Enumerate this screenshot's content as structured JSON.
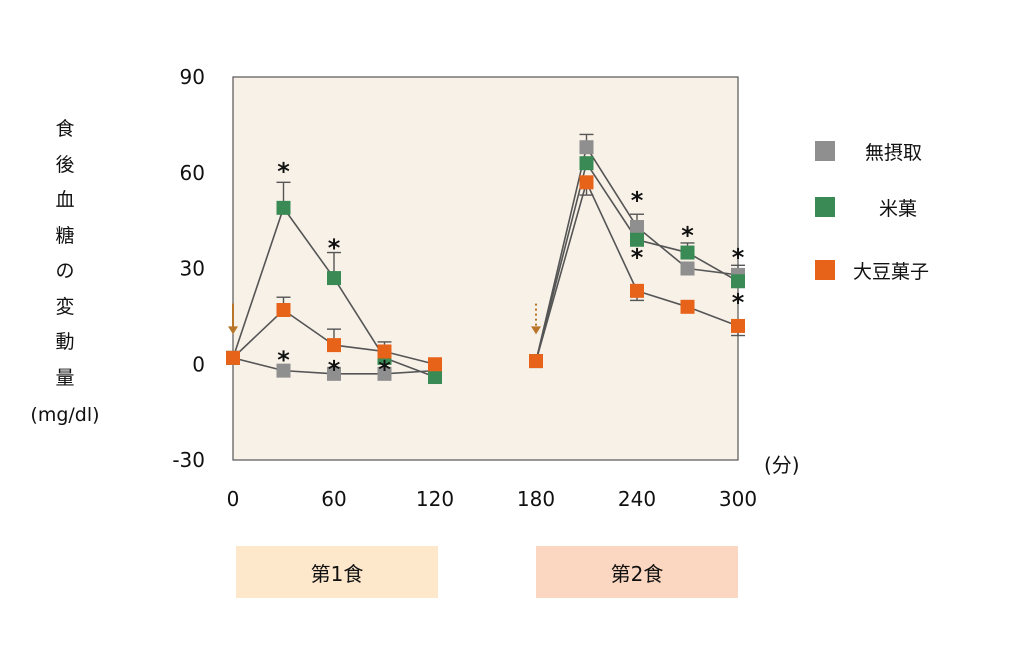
{
  "y_axis_label_chars": [
    "食",
    "後",
    "血",
    "糖",
    "の",
    "変",
    "動",
    "量"
  ],
  "y_axis_unit": "(mg/dl)",
  "x_axis_unit": "(分)",
  "meal_labels": [
    "第1食",
    "第2食"
  ],
  "legend": [
    {
      "label": "無摂取",
      "color": "#8f8f8f"
    },
    {
      "label": "米菓",
      "color": "#3a8a55"
    },
    {
      "label": "大豆菓子",
      "color": "#e8631a"
    }
  ],
  "chart_data": {
    "type": "line",
    "title": "",
    "xlabel": "(分)",
    "ylabel": "食後血糖の変動量 (mg/dl)",
    "xlim": [
      0,
      300
    ],
    "ylim": [
      -30,
      90
    ],
    "x_ticks": [
      0,
      60,
      120,
      180,
      240,
      300
    ],
    "y_ticks": [
      -30,
      0,
      30,
      60,
      90
    ],
    "plot_background": "#f7f1e8",
    "series": [
      {
        "name": "無摂取",
        "color": "#8f8f8f",
        "segments": [
          {
            "x": [
              0,
              30,
              60,
              90,
              120
            ],
            "y": [
              2,
              -2,
              -3,
              -3,
              -2
            ]
          },
          {
            "x": [
              180,
              210,
              240,
              270,
              300
            ],
            "y": [
              1,
              68,
              43,
              30,
              28
            ]
          }
        ]
      },
      {
        "name": "米菓",
        "color": "#3a8a55",
        "segments": [
          {
            "x": [
              0,
              30,
              60,
              90,
              120
            ],
            "y": [
              2,
              49,
              27,
              2,
              -4
            ]
          },
          {
            "x": [
              180,
              210,
              240,
              270,
              300
            ],
            "y": [
              1,
              63,
              39,
              35,
              26
            ]
          }
        ]
      },
      {
        "name": "大豆菓子",
        "color": "#e8631a",
        "segments": [
          {
            "x": [
              0,
              30,
              60,
              90,
              120
            ],
            "y": [
              2,
              17,
              6,
              4,
              0
            ]
          },
          {
            "x": [
              180,
              210,
              240,
              270,
              300
            ],
            "y": [
              1,
              57,
              23,
              18,
              12
            ]
          }
        ]
      }
    ],
    "error_bars": [
      {
        "x": 30,
        "y": 49,
        "top": 57
      },
      {
        "x": 60,
        "y": 27,
        "top": 35
      },
      {
        "x": 90,
        "y": 4,
        "top": 7
      },
      {
        "x": 30,
        "y": 17,
        "top": 21
      },
      {
        "x": 60,
        "y": 6,
        "top": 11
      },
      {
        "x": 210,
        "y": 68,
        "top": 72
      },
      {
        "x": 210,
        "y": 57,
        "bottom": 53
      },
      {
        "x": 240,
        "y": 43,
        "top": 47
      },
      {
        "x": 240,
        "y": 23,
        "bottom": 20
      },
      {
        "x": 270,
        "y": 35,
        "top": 38
      },
      {
        "x": 300,
        "y": 28,
        "top": 31
      },
      {
        "x": 300,
        "y": 12,
        "bottom": 9
      }
    ],
    "annotations": [
      {
        "text": "*",
        "x": 30,
        "y": 61
      },
      {
        "text": "*",
        "x": 60,
        "y": 37
      },
      {
        "text": "*",
        "x": 30,
        "y": 2
      },
      {
        "text": "*",
        "x": 60,
        "y": -1
      },
      {
        "text": "*",
        "x": 90,
        "y": -1
      },
      {
        "text": "*",
        "x": 240,
        "y": 52
      },
      {
        "text": "*",
        "x": 240,
        "y": 34
      },
      {
        "text": "*",
        "x": 270,
        "y": 41
      },
      {
        "text": "*",
        "x": 300,
        "y": 34
      },
      {
        "text": "*",
        "x": 300,
        "y": 20
      }
    ],
    "meal_markers": [
      {
        "x": 0,
        "from": 19,
        "to": 10,
        "style": "solid"
      },
      {
        "x": 180,
        "from": 19,
        "to": 10,
        "style": "dotted"
      }
    ]
  }
}
